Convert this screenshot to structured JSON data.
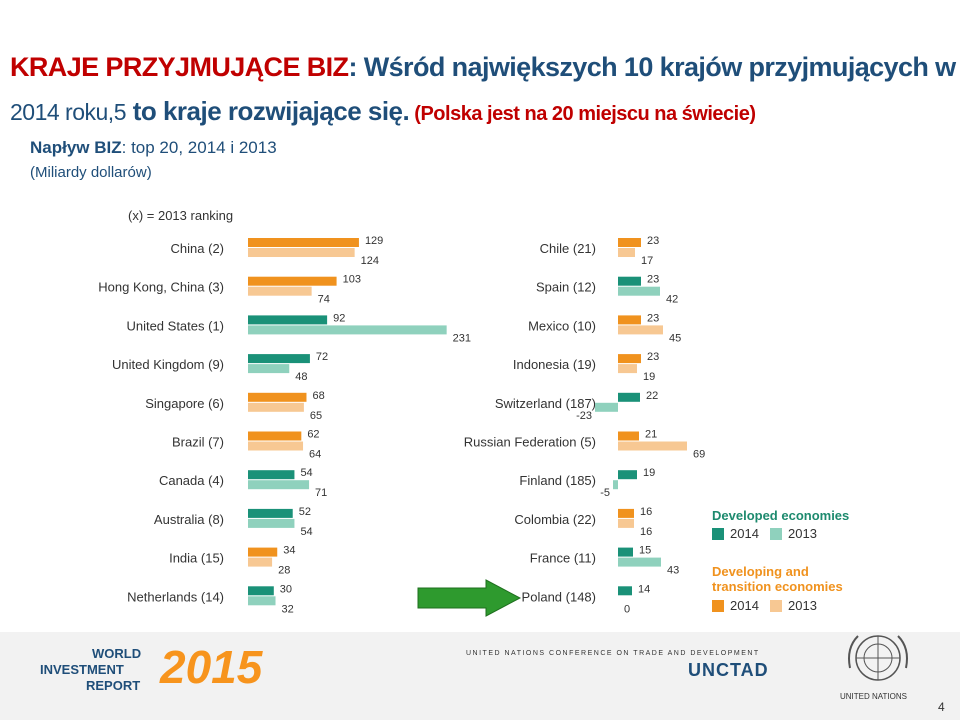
{
  "title": {
    "part1": "KRAJE PRZYJMUJĄCE BIZ",
    "part2": ": Wśród największych 10 krajów przyjmujących w",
    "part3": "2014 roku,5",
    "part4": " to kraje rozwijające się.",
    "part5": " (Polska jest na 20 miejscu na świecie)"
  },
  "subtitle": {
    "bold": "Napływ BIZ",
    "rest": ": top 20, 2014 i 2013",
    "unit": "(Miliardy dollarów)"
  },
  "ranking_note": "(x) = 2013 ranking",
  "legend": {
    "developed_title": "Developed economies",
    "developing_title_1": "Developing and",
    "developing_title_2": "transition economies",
    "label_2014": "2014",
    "label_2013": "2013"
  },
  "colors": {
    "developed_2014": "#1a9178",
    "developed_2013": "#8fd1bd",
    "developing_2014": "#f0921e",
    "developing_2013": "#f7c893",
    "arrow": "#2e9a2e",
    "title_red": "#c00000",
    "title_blue": "#1f4e79"
  },
  "footer": {
    "wir_1": "WORLD",
    "wir_2": "INVESTMENT",
    "wir_3": "REPORT",
    "wir_year": "2015",
    "unctad_conf": "UNITED NATIONS CONFERENCE ON TRADE AND DEVELOPMENT",
    "unctad": "UNCTAD",
    "un": "UNITED NATIONS",
    "page": "4"
  },
  "chart_data": {
    "type": "bar",
    "orientation": "horizontal",
    "series_names": [
      "2014",
      "2013"
    ],
    "left": [
      {
        "country": "China (2)",
        "group": "developing",
        "v2014": 129,
        "v2013": 124
      },
      {
        "country": "Hong Kong, China (3)",
        "group": "developing",
        "v2014": 103,
        "v2013": 74
      },
      {
        "country": "United States (1)",
        "group": "developed",
        "v2014": 92,
        "v2013": 231
      },
      {
        "country": "United Kingdom (9)",
        "group": "developed",
        "v2014": 72,
        "v2013": 48
      },
      {
        "country": "Singapore (6)",
        "group": "developing",
        "v2014": 68,
        "v2013": 65
      },
      {
        "country": "Brazil (7)",
        "group": "developing",
        "v2014": 62,
        "v2013": 64
      },
      {
        "country": "Canada (4)",
        "group": "developed",
        "v2014": 54,
        "v2013": 71
      },
      {
        "country": "Australia (8)",
        "group": "developed",
        "v2014": 52,
        "v2013": 54
      },
      {
        "country": "India (15)",
        "group": "developing",
        "v2014": 34,
        "v2013": 28
      },
      {
        "country": "Netherlands (14)",
        "group": "developed",
        "v2014": 30,
        "v2013": 32
      }
    ],
    "right": [
      {
        "country": "Chile (21)",
        "group": "developing",
        "v2014": 23,
        "v2013": 17
      },
      {
        "country": "Spain (12)",
        "group": "developed",
        "v2014": 23,
        "v2013": 42
      },
      {
        "country": "Mexico (10)",
        "group": "developing",
        "v2014": 23,
        "v2013": 45
      },
      {
        "country": "Indonesia (19)",
        "group": "developing",
        "v2014": 23,
        "v2013": 19
      },
      {
        "country": "Switzerland (187)",
        "group": "developed",
        "v2014": 22,
        "v2013": -23
      },
      {
        "country": "Russian Federation (5)",
        "group": "developing",
        "v2014": 21,
        "v2013": 69
      },
      {
        "country": "Finland (185)",
        "group": "developed",
        "v2014": 19,
        "v2013": -5
      },
      {
        "country": "Colombia (22)",
        "group": "developing",
        "v2014": 16,
        "v2013": 16
      },
      {
        "country": "France (11)",
        "group": "developed",
        "v2014": 15,
        "v2013": 43
      },
      {
        "country": "Poland (148)",
        "group": "developed",
        "v2014": 14,
        "v2013": 0
      }
    ]
  }
}
